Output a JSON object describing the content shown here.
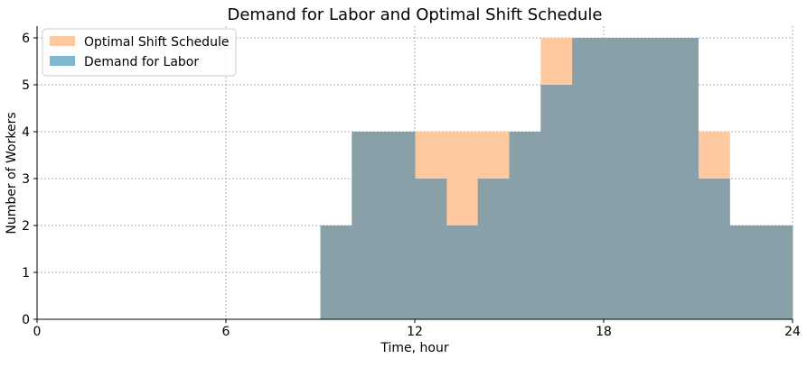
{
  "chart_data": {
    "type": "area",
    "title": "Demand for Labor and Optimal Shift Schedule",
    "xlabel": "Time, hour",
    "ylabel": "Number of Workers",
    "xlim": [
      0,
      24
    ],
    "ylim": [
      0,
      6.25
    ],
    "xticks": [
      0,
      6,
      12,
      18,
      24
    ],
    "yticks": [
      0,
      1,
      2,
      3,
      4,
      5,
      6
    ],
    "grid": true,
    "legend_position": "upper-left",
    "step_style": "post",
    "hours": [
      0,
      1,
      2,
      3,
      4,
      5,
      6,
      7,
      8,
      9,
      10,
      11,
      12,
      13,
      14,
      15,
      16,
      17,
      18,
      19,
      20,
      21,
      22,
      23,
      24
    ],
    "series": [
      {
        "name": "Optimal Shift Schedule",
        "color": "#ffc9a0",
        "values": [
          0,
          0,
          0,
          0,
          0,
          0,
          0,
          0,
          0,
          2,
          4,
          4,
          4,
          4,
          4,
          4,
          6,
          6,
          6,
          6,
          6,
          4,
          2,
          2,
          2
        ]
      },
      {
        "name": "Demand for Labor",
        "color": "#8aa0a8",
        "legend_color": "#7fb7d1",
        "values": [
          0,
          0,
          0,
          0,
          0,
          0,
          0,
          0,
          0,
          2,
          4,
          4,
          3,
          2,
          3,
          4,
          5,
          6,
          6,
          6,
          6,
          3,
          2,
          2,
          2
        ]
      }
    ]
  }
}
